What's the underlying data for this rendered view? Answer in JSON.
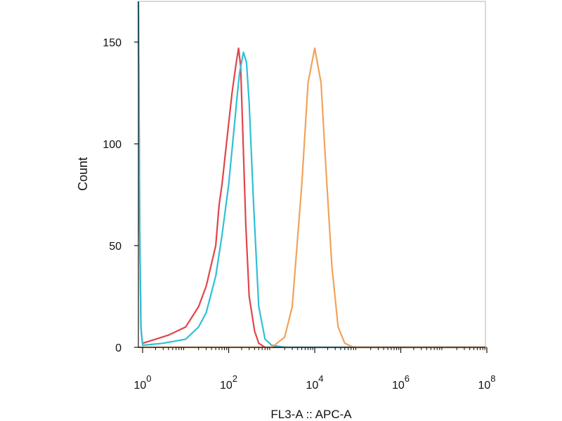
{
  "chart_data": {
    "type": "line",
    "title": "",
    "xlabel": "FL3-A :: APC-A",
    "ylabel": "Count",
    "x_scale": "log-biexponential",
    "xlim": [
      -100,
      100000000
    ],
    "ylim": [
      0,
      170
    ],
    "grid": false,
    "legend": "none",
    "y_ticks": [
      {
        "value": 0,
        "label": "0"
      },
      {
        "value": 50,
        "label": "50"
      },
      {
        "value": 100,
        "label": "100"
      },
      {
        "value": 150,
        "label": "150"
      }
    ],
    "x_ticks": [
      {
        "value": 1,
        "base": "10",
        "exp": "0"
      },
      {
        "value": 100,
        "base": "10",
        "exp": "2"
      },
      {
        "value": 10000,
        "base": "10",
        "exp": "4"
      },
      {
        "value": 1000000,
        "base": "10",
        "exp": "6"
      },
      {
        "value": 100000000,
        "base": "10",
        "exp": "8"
      }
    ],
    "series": [
      {
        "color": "#e0454a",
        "points": [
          [
            -100,
            170
          ],
          [
            -70,
            60
          ],
          [
            -40,
            10
          ],
          [
            -10,
            3
          ],
          [
            1,
            2
          ],
          [
            2,
            4
          ],
          [
            4,
            6
          ],
          [
            10,
            10
          ],
          [
            20,
            20
          ],
          [
            30,
            30
          ],
          [
            50,
            50
          ],
          [
            60,
            70
          ],
          [
            70,
            80
          ],
          [
            100,
            110
          ],
          [
            120,
            125
          ],
          [
            150,
            140
          ],
          [
            170,
            147
          ],
          [
            190,
            138
          ],
          [
            210,
            110
          ],
          [
            250,
            60
          ],
          [
            300,
            25
          ],
          [
            400,
            8
          ],
          [
            500,
            2
          ],
          [
            700,
            0
          ],
          [
            100000000,
            0
          ]
        ]
      },
      {
        "color": "#2fc0d6",
        "points": [
          [
            -100,
            170
          ],
          [
            -70,
            60
          ],
          [
            -40,
            10
          ],
          [
            -10,
            3
          ],
          [
            1,
            1
          ],
          [
            3,
            2
          ],
          [
            10,
            4
          ],
          [
            20,
            10
          ],
          [
            30,
            17
          ],
          [
            50,
            35
          ],
          [
            70,
            55
          ],
          [
            100,
            80
          ],
          [
            130,
            105
          ],
          [
            160,
            125
          ],
          [
            180,
            135
          ],
          [
            220,
            145
          ],
          [
            260,
            140
          ],
          [
            300,
            120
          ],
          [
            380,
            70
          ],
          [
            500,
            20
          ],
          [
            700,
            4
          ],
          [
            1000,
            1
          ],
          [
            2000,
            0
          ],
          [
            100000000,
            0
          ]
        ]
      },
      {
        "color": "#f0a35a",
        "points": [
          [
            -100,
            0
          ],
          [
            700,
            0
          ],
          [
            1000,
            0
          ],
          [
            2000,
            5
          ],
          [
            3000,
            20
          ],
          [
            5000,
            80
          ],
          [
            7000,
            130
          ],
          [
            10000,
            147
          ],
          [
            14000,
            130
          ],
          [
            18000,
            90
          ],
          [
            25000,
            40
          ],
          [
            35000,
            10
          ],
          [
            50000,
            2
          ],
          [
            80000,
            0
          ],
          [
            100000000,
            0
          ]
        ]
      }
    ]
  }
}
